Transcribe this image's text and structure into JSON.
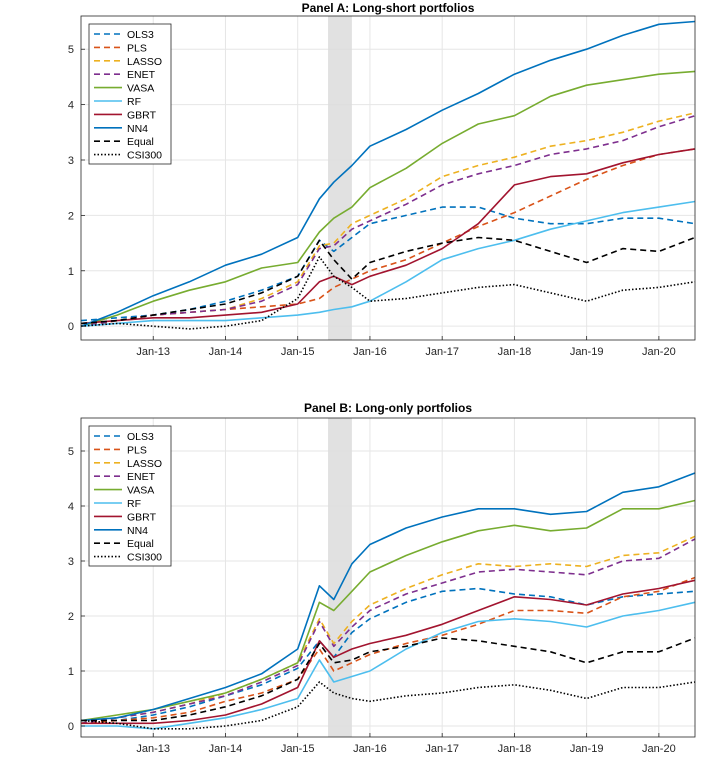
{
  "chart_data": [
    {
      "type": "line",
      "title": "Panel A: Long-short portfolios",
      "xlabel": "",
      "ylabel": "",
      "x_ticks": [
        "Jan-13",
        "Jan-14",
        "Jan-15",
        "Jan-16",
        "Jan-17",
        "Jan-18",
        "Jan-19",
        "Jan-20"
      ],
      "y_ticks": [
        "0",
        "1",
        "2",
        "3",
        "4",
        "5"
      ],
      "xlim": [
        2012.0,
        2020.5
      ],
      "ylim": [
        -0.25,
        5.6
      ],
      "shaded_region": [
        2015.42,
        2015.75
      ],
      "legend_position": "top-left",
      "series": [
        {
          "name": "OLS3",
          "color": "#0072BD",
          "style": "dashed",
          "x": [
            2012.0,
            2012.5,
            2013.0,
            2013.5,
            2014.0,
            2014.5,
            2015.0,
            2015.3,
            2015.5,
            2015.75,
            2016.0,
            2016.5,
            2017.0,
            2017.5,
            2018.0,
            2018.5,
            2019.0,
            2019.5,
            2020.0,
            2020.5
          ],
          "values": [
            0.1,
            0.15,
            0.2,
            0.3,
            0.45,
            0.65,
            0.9,
            1.55,
            1.35,
            1.6,
            1.85,
            2.0,
            2.15,
            2.15,
            1.95,
            1.85,
            1.85,
            1.95,
            1.95,
            1.85
          ]
        },
        {
          "name": "PLS",
          "color": "#D95319",
          "style": "dashed",
          "x": [
            2012.0,
            2012.5,
            2013.0,
            2013.5,
            2014.0,
            2014.5,
            2015.0,
            2015.3,
            2015.5,
            2015.75,
            2016.0,
            2016.5,
            2017.0,
            2017.5,
            2018.0,
            2018.5,
            2019.0,
            2019.5,
            2020.0,
            2020.5
          ],
          "values": [
            0.0,
            0.1,
            0.2,
            0.25,
            0.3,
            0.35,
            0.4,
            0.5,
            0.7,
            0.85,
            1.0,
            1.2,
            1.5,
            1.8,
            2.05,
            2.35,
            2.65,
            2.9,
            3.1,
            3.2
          ]
        },
        {
          "name": "LASSO",
          "color": "#EDB120",
          "style": "dashed",
          "x": [
            2012.0,
            2012.5,
            2013.0,
            2013.5,
            2014.0,
            2014.5,
            2015.0,
            2015.3,
            2015.5,
            2015.75,
            2016.0,
            2016.5,
            2017.0,
            2017.5,
            2018.0,
            2018.5,
            2019.0,
            2019.5,
            2020.0,
            2020.5
          ],
          "values": [
            0.0,
            0.1,
            0.2,
            0.25,
            0.3,
            0.5,
            0.8,
            1.45,
            1.5,
            1.85,
            2.0,
            2.3,
            2.7,
            2.9,
            3.05,
            3.25,
            3.35,
            3.5,
            3.7,
            3.85
          ]
        },
        {
          "name": "ENET",
          "color": "#7E2F8E",
          "style": "dashed",
          "x": [
            2012.0,
            2012.5,
            2013.0,
            2013.5,
            2014.0,
            2014.5,
            2015.0,
            2015.3,
            2015.5,
            2015.75,
            2016.0,
            2016.5,
            2017.0,
            2017.5,
            2018.0,
            2018.5,
            2019.0,
            2019.5,
            2020.0,
            2020.5
          ],
          "values": [
            0.0,
            0.1,
            0.2,
            0.25,
            0.3,
            0.45,
            0.75,
            1.4,
            1.45,
            1.75,
            1.9,
            2.2,
            2.55,
            2.75,
            2.9,
            3.1,
            3.2,
            3.35,
            3.6,
            3.8
          ]
        },
        {
          "name": "VASA",
          "color": "#77AC30",
          "style": "solid",
          "x": [
            2012.0,
            2012.5,
            2013.0,
            2013.5,
            2014.0,
            2014.5,
            2015.0,
            2015.3,
            2015.5,
            2015.75,
            2016.0,
            2016.5,
            2017.0,
            2017.5,
            2018.0,
            2018.5,
            2019.0,
            2019.5,
            2020.0,
            2020.5
          ],
          "values": [
            0.0,
            0.2,
            0.45,
            0.65,
            0.8,
            1.05,
            1.15,
            1.7,
            1.95,
            2.15,
            2.5,
            2.85,
            3.3,
            3.65,
            3.8,
            4.15,
            4.35,
            4.45,
            4.55,
            4.6
          ]
        },
        {
          "name": "RF",
          "color": "#4DBEEE",
          "style": "solid",
          "x": [
            2012.0,
            2012.5,
            2013.0,
            2013.5,
            2014.0,
            2014.5,
            2015.0,
            2015.3,
            2015.5,
            2015.75,
            2016.0,
            2016.5,
            2017.0,
            2017.5,
            2018.0,
            2018.5,
            2019.0,
            2019.5,
            2020.0,
            2020.5
          ],
          "values": [
            0.0,
            0.05,
            0.1,
            0.1,
            0.1,
            0.15,
            0.2,
            0.25,
            0.3,
            0.35,
            0.45,
            0.8,
            1.2,
            1.4,
            1.55,
            1.75,
            1.9,
            2.05,
            2.15,
            2.25
          ]
        },
        {
          "name": "GBRT",
          "color": "#A2142F",
          "style": "solid",
          "x": [
            2012.0,
            2012.5,
            2013.0,
            2013.5,
            2014.0,
            2014.5,
            2015.0,
            2015.3,
            2015.5,
            2015.75,
            2016.0,
            2016.5,
            2017.0,
            2017.5,
            2018.0,
            2018.5,
            2019.0,
            2019.5,
            2020.0,
            2020.5
          ],
          "values": [
            0.05,
            0.1,
            0.15,
            0.15,
            0.2,
            0.25,
            0.4,
            0.8,
            0.9,
            0.75,
            0.9,
            1.1,
            1.4,
            1.85,
            2.55,
            2.7,
            2.75,
            2.95,
            3.1,
            3.2
          ]
        },
        {
          "name": "NN4",
          "color": "#0072BD",
          "style": "solid",
          "x": [
            2012.0,
            2012.5,
            2013.0,
            2013.5,
            2014.0,
            2014.5,
            2015.0,
            2015.3,
            2015.5,
            2015.75,
            2016.0,
            2016.5,
            2017.0,
            2017.5,
            2018.0,
            2018.5,
            2019.0,
            2019.5,
            2020.0,
            2020.5
          ],
          "values": [
            0.0,
            0.25,
            0.55,
            0.8,
            1.1,
            1.3,
            1.6,
            2.3,
            2.6,
            2.9,
            3.25,
            3.55,
            3.9,
            4.2,
            4.55,
            4.8,
            5.0,
            5.25,
            5.45,
            5.5
          ]
        },
        {
          "name": "Equal",
          "color": "#000000",
          "style": "dashed",
          "x": [
            2012.0,
            2012.5,
            2013.0,
            2013.5,
            2014.0,
            2014.5,
            2015.0,
            2015.3,
            2015.5,
            2015.75,
            2016.0,
            2016.5,
            2017.0,
            2017.5,
            2018.0,
            2018.5,
            2019.0,
            2019.5,
            2020.0,
            2020.5
          ],
          "values": [
            0.05,
            0.1,
            0.2,
            0.3,
            0.4,
            0.6,
            0.9,
            1.55,
            1.2,
            0.85,
            1.15,
            1.35,
            1.5,
            1.6,
            1.55,
            1.35,
            1.15,
            1.4,
            1.35,
            1.6
          ]
        },
        {
          "name": "CSI300",
          "color": "#000000",
          "style": "dotted",
          "x": [
            2012.0,
            2012.5,
            2013.0,
            2013.5,
            2014.0,
            2014.5,
            2015.0,
            2015.3,
            2015.5,
            2015.75,
            2016.0,
            2016.5,
            2017.0,
            2017.5,
            2018.0,
            2018.5,
            2019.0,
            2019.5,
            2020.0,
            2020.5
          ],
          "values": [
            0.0,
            0.05,
            0.0,
            -0.05,
            0.0,
            0.1,
            0.5,
            1.25,
            0.9,
            0.7,
            0.45,
            0.5,
            0.6,
            0.7,
            0.75,
            0.6,
            0.45,
            0.65,
            0.7,
            0.8
          ]
        }
      ]
    },
    {
      "type": "line",
      "title": "Panel B: Long-only portfolios",
      "xlabel": "",
      "ylabel": "",
      "x_ticks": [
        "Jan-13",
        "Jan-14",
        "Jan-15",
        "Jan-16",
        "Jan-17",
        "Jan-18",
        "Jan-19",
        "Jan-20"
      ],
      "y_ticks": [
        "0",
        "1",
        "2",
        "3",
        "4",
        "5"
      ],
      "xlim": [
        2012.0,
        2020.5
      ],
      "ylim": [
        -0.2,
        5.6
      ],
      "shaded_region": [
        2015.42,
        2015.75
      ],
      "legend_position": "top-left",
      "series": [
        {
          "name": "OLS3",
          "color": "#0072BD",
          "style": "dashed",
          "x": [
            2012.0,
            2012.5,
            2013.0,
            2013.5,
            2014.0,
            2014.5,
            2015.0,
            2015.3,
            2015.5,
            2015.75,
            2016.0,
            2016.5,
            2017.0,
            2017.5,
            2018.0,
            2018.5,
            2019.0,
            2019.5,
            2020.0,
            2020.5
          ],
          "values": [
            0.1,
            0.1,
            0.2,
            0.35,
            0.55,
            0.75,
            1.05,
            1.55,
            1.25,
            1.7,
            1.95,
            2.25,
            2.45,
            2.5,
            2.4,
            2.35,
            2.2,
            2.35,
            2.4,
            2.45
          ]
        },
        {
          "name": "PLS",
          "color": "#D95319",
          "style": "dashed",
          "x": [
            2012.0,
            2012.5,
            2013.0,
            2013.5,
            2014.0,
            2014.5,
            2015.0,
            2015.3,
            2015.5,
            2015.75,
            2016.0,
            2016.5,
            2017.0,
            2017.5,
            2018.0,
            2018.5,
            2019.0,
            2019.5,
            2020.0,
            2020.5
          ],
          "values": [
            0.05,
            0.1,
            0.15,
            0.25,
            0.45,
            0.6,
            0.85,
            1.4,
            1.0,
            1.15,
            1.3,
            1.5,
            1.65,
            1.85,
            2.1,
            2.1,
            2.05,
            2.35,
            2.45,
            2.7
          ]
        },
        {
          "name": "LASSO",
          "color": "#EDB120",
          "style": "dashed",
          "x": [
            2012.0,
            2012.5,
            2013.0,
            2013.5,
            2014.0,
            2014.5,
            2015.0,
            2015.3,
            2015.5,
            2015.75,
            2016.0,
            2016.5,
            2017.0,
            2017.5,
            2018.0,
            2018.5,
            2019.0,
            2019.5,
            2020.0,
            2020.5
          ],
          "values": [
            0.05,
            0.15,
            0.25,
            0.4,
            0.6,
            0.85,
            1.15,
            1.95,
            1.5,
            1.9,
            2.2,
            2.5,
            2.75,
            2.95,
            2.9,
            2.95,
            2.9,
            3.1,
            3.15,
            3.45
          ]
        },
        {
          "name": "ENET",
          "color": "#7E2F8E",
          "style": "dashed",
          "x": [
            2012.0,
            2012.5,
            2013.0,
            2013.5,
            2014.0,
            2014.5,
            2015.0,
            2015.3,
            2015.5,
            2015.75,
            2016.0,
            2016.5,
            2017.0,
            2017.5,
            2018.0,
            2018.5,
            2019.0,
            2019.5,
            2020.0,
            2020.5
          ],
          "values": [
            0.05,
            0.15,
            0.25,
            0.4,
            0.55,
            0.8,
            1.1,
            1.9,
            1.45,
            1.8,
            2.1,
            2.4,
            2.6,
            2.8,
            2.85,
            2.8,
            2.75,
            3.0,
            3.05,
            3.4
          ]
        },
        {
          "name": "VASA",
          "color": "#77AC30",
          "style": "solid",
          "x": [
            2012.0,
            2012.5,
            2013.0,
            2013.5,
            2014.0,
            2014.5,
            2015.0,
            2015.3,
            2015.5,
            2015.75,
            2016.0,
            2016.5,
            2017.0,
            2017.5,
            2018.0,
            2018.5,
            2019.0,
            2019.5,
            2020.0,
            2020.5
          ],
          "values": [
            0.1,
            0.2,
            0.3,
            0.45,
            0.6,
            0.85,
            1.15,
            2.25,
            2.1,
            2.45,
            2.8,
            3.1,
            3.35,
            3.55,
            3.65,
            3.55,
            3.6,
            3.95,
            3.95,
            4.1
          ]
        },
        {
          "name": "RF",
          "color": "#4DBEEE",
          "style": "solid",
          "x": [
            2012.0,
            2012.5,
            2013.0,
            2013.5,
            2014.0,
            2014.5,
            2015.0,
            2015.3,
            2015.5,
            2015.75,
            2016.0,
            2016.5,
            2017.0,
            2017.5,
            2018.0,
            2018.5,
            2019.0,
            2019.5,
            2020.0,
            2020.5
          ],
          "values": [
            0.0,
            0.0,
            -0.05,
            0.05,
            0.15,
            0.3,
            0.5,
            1.2,
            0.8,
            0.9,
            1.0,
            1.4,
            1.7,
            1.9,
            1.95,
            1.9,
            1.8,
            2.0,
            2.1,
            2.25
          ]
        },
        {
          "name": "GBRT",
          "color": "#A2142F",
          "style": "solid",
          "x": [
            2012.0,
            2012.5,
            2013.0,
            2013.5,
            2014.0,
            2014.5,
            2015.0,
            2015.3,
            2015.5,
            2015.75,
            2016.0,
            2016.5,
            2017.0,
            2017.5,
            2018.0,
            2018.5,
            2019.0,
            2019.5,
            2020.0,
            2020.5
          ],
          "values": [
            0.05,
            0.05,
            0.05,
            0.1,
            0.2,
            0.4,
            0.7,
            1.55,
            1.25,
            1.4,
            1.5,
            1.65,
            1.85,
            2.1,
            2.35,
            2.3,
            2.2,
            2.4,
            2.5,
            2.65
          ]
        },
        {
          "name": "NN4",
          "color": "#0072BD",
          "style": "solid",
          "x": [
            2012.0,
            2012.5,
            2013.0,
            2013.5,
            2014.0,
            2014.5,
            2015.0,
            2015.3,
            2015.5,
            2015.75,
            2016.0,
            2016.5,
            2017.0,
            2017.5,
            2018.0,
            2018.5,
            2019.0,
            2019.5,
            2020.0,
            2020.5
          ],
          "values": [
            0.1,
            0.15,
            0.3,
            0.5,
            0.7,
            0.95,
            1.4,
            2.55,
            2.3,
            2.95,
            3.3,
            3.6,
            3.8,
            3.95,
            3.95,
            3.85,
            3.9,
            4.25,
            4.35,
            4.6
          ]
        },
        {
          "name": "Equal",
          "color": "#000000",
          "style": "dashed",
          "x": [
            2012.0,
            2012.5,
            2013.0,
            2013.5,
            2014.0,
            2014.5,
            2015.0,
            2015.3,
            2015.5,
            2015.75,
            2016.0,
            2016.5,
            2017.0,
            2017.5,
            2018.0,
            2018.5,
            2019.0,
            2019.5,
            2020.0,
            2020.5
          ],
          "values": [
            0.1,
            0.1,
            0.1,
            0.2,
            0.35,
            0.55,
            0.85,
            1.5,
            1.15,
            1.2,
            1.35,
            1.45,
            1.6,
            1.55,
            1.45,
            1.35,
            1.15,
            1.35,
            1.35,
            1.6
          ]
        },
        {
          "name": "CSI300",
          "color": "#000000",
          "style": "dotted",
          "x": [
            2012.0,
            2012.5,
            2013.0,
            2013.5,
            2014.0,
            2014.5,
            2015.0,
            2015.3,
            2015.5,
            2015.75,
            2016.0,
            2016.5,
            2017.0,
            2017.5,
            2018.0,
            2018.5,
            2019.0,
            2019.5,
            2020.0,
            2020.5
          ],
          "values": [
            0.1,
            0.05,
            -0.05,
            -0.05,
            0.0,
            0.1,
            0.35,
            0.8,
            0.6,
            0.5,
            0.45,
            0.55,
            0.6,
            0.7,
            0.75,
            0.65,
            0.5,
            0.7,
            0.7,
            0.8
          ]
        }
      ]
    }
  ]
}
